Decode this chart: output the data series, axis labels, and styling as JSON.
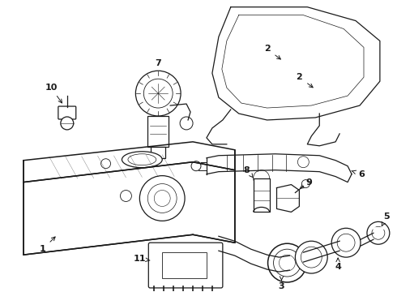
{
  "background_color": "#ffffff",
  "line_color": "#1a1a1a",
  "figsize": [
    4.9,
    3.6
  ],
  "dpi": 100,
  "img_gray": true
}
